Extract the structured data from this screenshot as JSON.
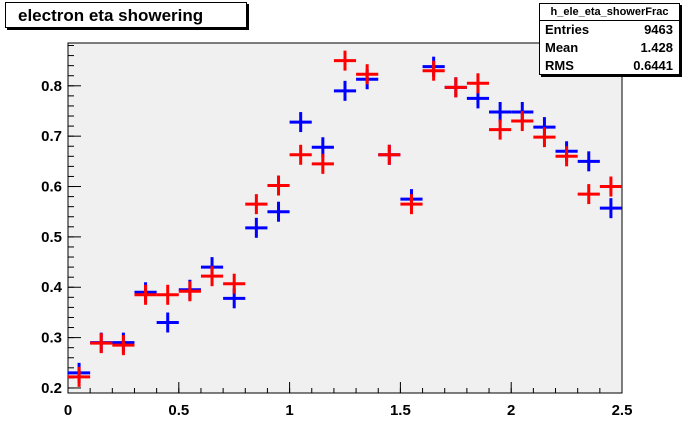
{
  "chart_data": {
    "type": "scatter",
    "title": "electron eta showering",
    "xlim": [
      0,
      2.5
    ],
    "ylim": [
      0.19,
      0.885
    ],
    "x_ticks": [
      0,
      0.5,
      1,
      1.5,
      2,
      2.5
    ],
    "x_tick_labels": [
      "0",
      "0.5",
      "1",
      "1.5",
      "2",
      "2.5"
    ],
    "y_ticks": [
      0.2,
      0.3,
      0.4,
      0.5,
      0.6,
      0.7,
      0.8
    ],
    "y_tick_labels": [
      "0.2",
      "0.3",
      "0.4",
      "0.5",
      "0.6",
      "0.7",
      "0.8"
    ],
    "bin_width": 0.1,
    "series": [
      {
        "color": "#0000ff",
        "x": [
          0.05,
          0.15,
          0.25,
          0.35,
          0.45,
          0.55,
          0.65,
          0.75,
          0.85,
          0.95,
          1.05,
          1.15,
          1.25,
          1.35,
          1.45,
          1.55,
          1.65,
          1.75,
          1.85,
          1.95,
          2.05,
          2.15,
          2.25,
          2.35,
          2.45
        ],
        "y": [
          0.23,
          0.29,
          0.29,
          0.39,
          0.33,
          0.395,
          0.44,
          0.378,
          0.518,
          0.55,
          0.728,
          0.678,
          0.79,
          0.813,
          0.663,
          0.575,
          0.838,
          0.797,
          0.775,
          0.748,
          0.748,
          0.718,
          0.67,
          0.65,
          0.557
        ]
      },
      {
        "color": "#ff0000",
        "x": [
          0.05,
          0.15,
          0.25,
          0.35,
          0.45,
          0.55,
          0.65,
          0.75,
          0.85,
          0.95,
          1.05,
          1.15,
          1.25,
          1.35,
          1.45,
          1.55,
          1.65,
          1.75,
          1.85,
          1.95,
          2.05,
          2.15,
          2.25,
          2.35,
          2.45
        ],
        "y": [
          0.222,
          0.289,
          0.285,
          0.385,
          0.385,
          0.392,
          0.422,
          0.407,
          0.565,
          0.602,
          0.663,
          0.645,
          0.85,
          0.823,
          0.663,
          0.565,
          0.83,
          0.797,
          0.805,
          0.713,
          0.73,
          0.698,
          0.66,
          0.585,
          0.6
        ]
      }
    ],
    "stats": {
      "name": "h_ele_eta_showerFrac",
      "rows": [
        {
          "key": "Entries",
          "value": "9463"
        },
        {
          "key": "Mean",
          "value": "1.428"
        },
        {
          "key": "RMS",
          "value": "0.6441"
        }
      ]
    },
    "colors": {
      "frame_fill": "#f0f0f0",
      "canvas": "#ffffff"
    }
  }
}
